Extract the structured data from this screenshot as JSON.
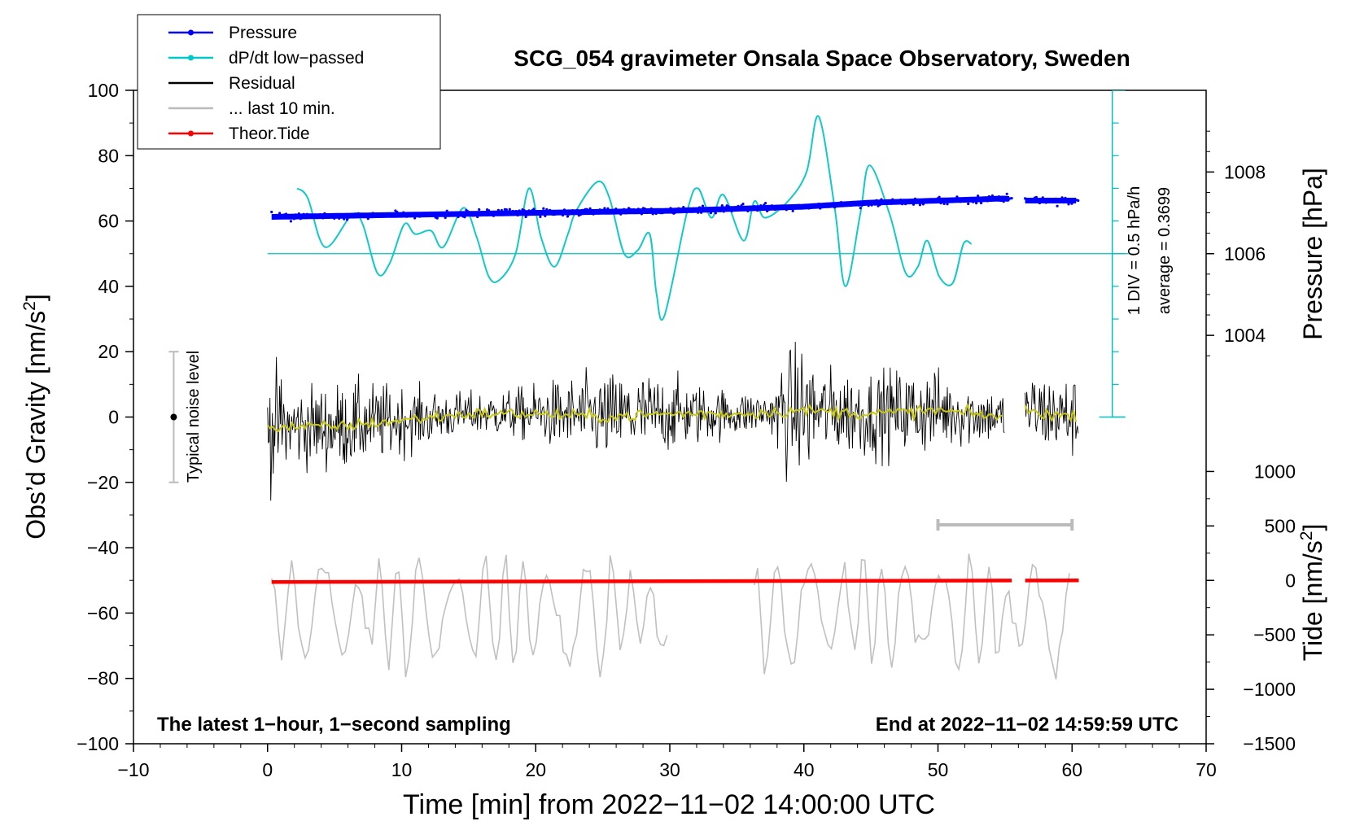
{
  "chart_data": {
    "type": "line",
    "title": "SCG_054 gravimeter Onsala Space Observatory, Sweden",
    "xlabel": "Time [min] from 2022−11−02 14:00:00 UTC",
    "ylabel_main": "Obs’d Gravity [nm/s",
    "ylabel_sup": "2",
    "ylabel_close": "]",
    "ylabel_pressure": "Pressure [hPa]",
    "ylabel_tide": "Tide [nm/s",
    "ylabel_tide_sup": "2",
    "ylabel_tide_close": "]",
    "xlim": [
      -10,
      70
    ],
    "ylim": [
      -100,
      100
    ],
    "x_ticks": [
      -10,
      0,
      10,
      20,
      30,
      40,
      50,
      60,
      70
    ],
    "x_tick_labels": [
      "−10",
      "0",
      "10",
      "20",
      "30",
      "40",
      "50",
      "60",
      "70"
    ],
    "y_ticks": [
      100,
      80,
      60,
      40,
      20,
      0,
      -20,
      -40,
      -60,
      -80,
      -100
    ],
    "y_tick_labels": [
      "100",
      "80",
      "60",
      "40",
      "20",
      "0",
      "−20",
      "−40",
      "−60",
      "−80",
      "−100"
    ],
    "pressure_ticks": [
      1008,
      1006,
      1004
    ],
    "pressure_tick_labels": [
      "1008",
      "1006",
      "1004"
    ],
    "tide_ticks": [
      1000,
      500,
      0,
      -500,
      -1000,
      -1500
    ],
    "tide_tick_labels": [
      "1000",
      "500",
      "0",
      "−500",
      "−1000",
      "−1500"
    ],
    "legend": [
      {
        "label": "Pressure",
        "color": "#0000ff",
        "marker": true
      },
      {
        "label": "dP/dt low−passed",
        "color": "#00c8c8",
        "marker": true
      },
      {
        "label": "Residual",
        "color": "#000000",
        "marker": false
      },
      {
        "label": "... last 10 min.",
        "color": "#bbbbbb",
        "marker": false
      },
      {
        "label": "Theor.Tide",
        "color": "#ff0000",
        "marker": true
      }
    ],
    "dpdt_scale_label": "1 DIV = 0.5 hPa/h",
    "dpdt_average_label": "average = 0.3699",
    "noise_label": "Typical noise level",
    "noise_range": [
      -20,
      20
    ],
    "last10_bar_range": [
      50,
      60
    ],
    "footer_left": "The latest 1−hour, 1−second sampling",
    "footer_right": "End at 2022−11−02 14:59:59 UTC",
    "series": [
      {
        "name": "Pressure",
        "unit": "hPa",
        "x": [
          0,
          10,
          20,
          30,
          40,
          45,
          50,
          55,
          56.5,
          60.5
        ],
        "values": [
          1006.9,
          1006.95,
          1007.0,
          1007.05,
          1007.15,
          1007.25,
          1007.3,
          1007.35,
          1007.3,
          1007.3
        ]
      },
      {
        "name": "dP/dt low−passed",
        "gravity_axis_y": {
          "x": [
            2.2,
            3.0,
            4.3,
            6.3,
            7.1,
            8.2,
            9.1,
            10.2,
            11.0,
            12.2,
            13.1,
            14.6,
            15.6,
            16.5,
            17.3,
            18.5,
            19.5,
            20.4,
            21.4,
            22.4,
            23.0,
            24.6,
            25.5,
            26.6,
            27.6,
            28.5,
            29.0,
            29.6,
            31.3,
            32.1,
            33.1,
            34.0,
            35.5,
            36.3,
            37.1,
            38.8,
            40.2,
            41.1,
            42.3,
            43.1,
            44.2,
            44.9,
            46.4,
            47.6,
            48.5,
            49.2,
            50.1,
            51.1,
            51.9,
            52.5
          ],
          "y": [
            70,
            67,
            52,
            62,
            59,
            44,
            47,
            59,
            56,
            57,
            52,
            64,
            55,
            43,
            42,
            50,
            70,
            55,
            46,
            56,
            63,
            72,
            67,
            50,
            51,
            56,
            38,
            31,
            63,
            70,
            61,
            68,
            54,
            66,
            61,
            66,
            75,
            92,
            64,
            40,
            62,
            77,
            62,
            44,
            46,
            54,
            43,
            41,
            53,
            53
          ]
        }
      },
      {
        "name": "Residual",
        "gravity_axis_y": {
          "x": [
            0,
            5,
            10,
            15,
            20,
            25,
            30,
            35,
            40,
            45,
            50,
            55,
            56.5,
            60
          ],
          "y": [
            -3,
            -3,
            -1,
            1,
            1,
            0,
            1,
            1,
            2,
            1,
            2,
            0,
            2,
            0
          ]
        }
      },
      {
        "name": "Theor.Tide",
        "unit": "nm/s2",
        "x": [
          0.3,
          60.5
        ],
        "values": [
          -15,
          0
        ]
      }
    ]
  }
}
